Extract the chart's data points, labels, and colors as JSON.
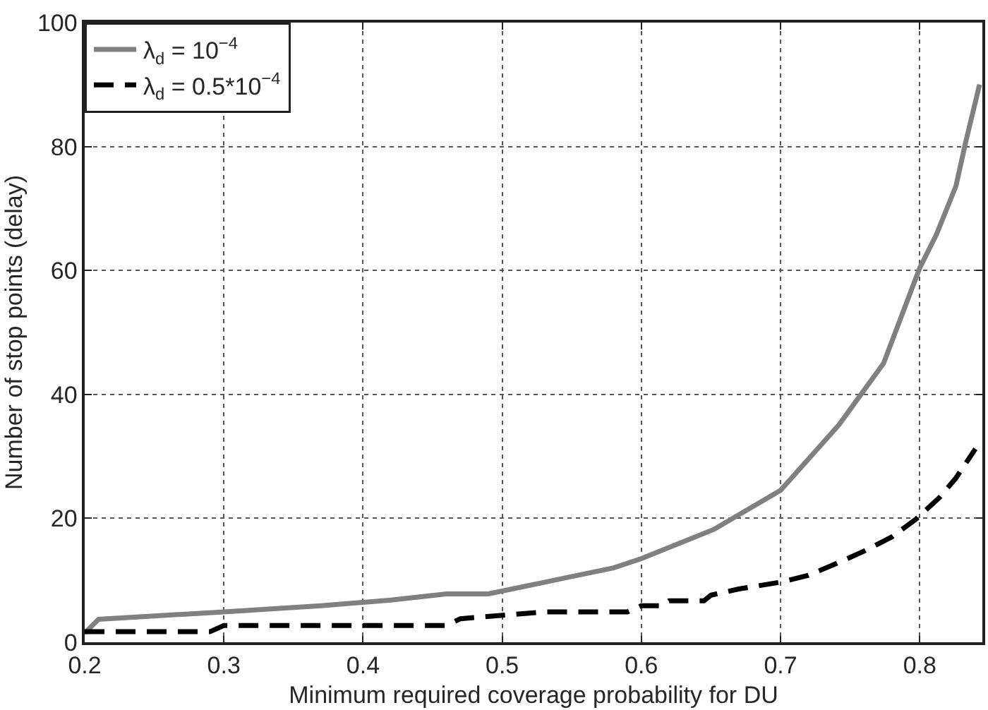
{
  "chart_data": {
    "type": "line",
    "xlabel": "Minimum required coverage probability for DU",
    "ylabel": "Number of stop points (delay)",
    "xlim": [
      0.2,
      0.845
    ],
    "ylim": [
      0,
      100
    ],
    "xticks": [
      0.2,
      0.3,
      0.4,
      0.5,
      0.6,
      0.7,
      0.8
    ],
    "yticks": [
      0,
      20,
      40,
      60,
      80,
      100
    ],
    "grid": true,
    "legend": "top left",
    "marker": "none",
    "series": [
      {
        "name": "λ$_{d}$ = 10$^{−4}$",
        "color": "#808080",
        "line_style": "solid",
        "x": [
          0.2,
          0.21,
          0.3,
          0.37,
          0.42,
          0.46,
          0.49,
          0.52,
          0.55,
          0.58,
          0.6,
          0.652,
          0.7,
          0.742,
          0.774,
          0.8,
          0.812,
          0.826,
          0.833,
          0.843
        ],
        "values": [
          1.5,
          3.7,
          4.9,
          5.9,
          6.8,
          7.8,
          7.8,
          9.2,
          10.6,
          12,
          13.5,
          18.2,
          24.5,
          35.1,
          45,
          60.4,
          65.8,
          73.6,
          80.7,
          90
        ]
      },
      {
        "name": "λ$_{d}$ = 0.5*10$^{−4}$",
        "color": "#000000",
        "line_style": "dashed",
        "x": [
          0.2,
          0.29,
          0.3,
          0.46,
          0.47,
          0.53,
          0.59,
          0.6,
          0.615,
          0.62,
          0.645,
          0.65,
          0.67,
          0.7,
          0.72,
          0.74,
          0.76,
          0.78,
          0.797,
          0.814,
          0.826,
          0.84
        ],
        "values": [
          1.7,
          1.7,
          2.7,
          2.7,
          3.8,
          4.9,
          4.9,
          5.9,
          5.9,
          6.7,
          6.7,
          7.6,
          8.6,
          9.7,
          10.8,
          12.7,
          14.7,
          17,
          19.8,
          23.3,
          26.5,
          31.2
        ]
      }
    ]
  }
}
